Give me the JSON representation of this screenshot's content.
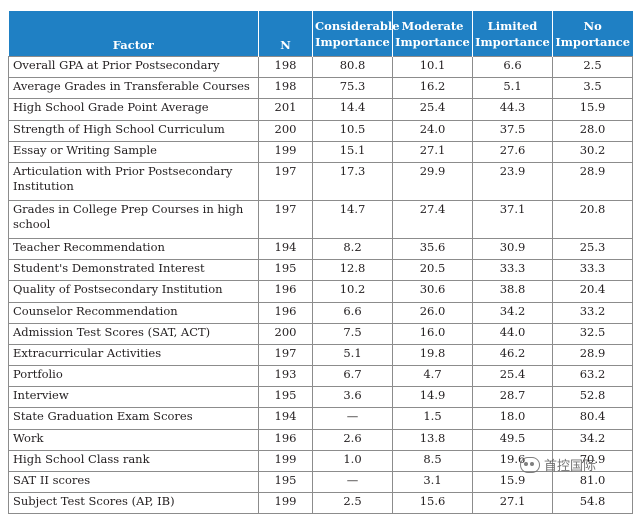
{
  "headers": {
    "factor": "Factor",
    "n": "N",
    "considerable": "Considerable Importance",
    "moderate": "Moderate Importance",
    "limited": "Limited Importance",
    "no": "No Importance"
  },
  "rows": [
    {
      "factor": "Overall GPA at Prior Postsecondary",
      "n": "198",
      "considerable": "80.8",
      "moderate": "10.1",
      "limited": "6.6",
      "no": "2.5"
    },
    {
      "factor": "Average Grades in Transferable Courses",
      "n": "198",
      "considerable": "75.3",
      "moderate": "16.2",
      "limited": "5.1",
      "no": "3.5"
    },
    {
      "factor": "High School Grade Point Average",
      "n": "201",
      "considerable": "14.4",
      "moderate": "25.4",
      "limited": "44.3",
      "no": "15.9"
    },
    {
      "factor": "Strength of High School Curriculum",
      "n": "200",
      "considerable": "10.5",
      "moderate": "24.0",
      "limited": "37.5",
      "no": "28.0"
    },
    {
      "factor": "Essay or Writing Sample",
      "n": "199",
      "considerable": "15.1",
      "moderate": "27.1",
      "limited": "27.6",
      "no": "30.2"
    },
    {
      "factor": "Articulation with Prior Postsecondary Institution",
      "n": "197",
      "considerable": "17.3",
      "moderate": "29.9",
      "limited": "23.9",
      "no": "28.9"
    },
    {
      "factor": "Grades in College Prep Courses in high school",
      "n": "197",
      "considerable": "14.7",
      "moderate": "27.4",
      "limited": "37.1",
      "no": "20.8"
    },
    {
      "factor": "Teacher Recommendation",
      "n": "194",
      "considerable": "8.2",
      "moderate": "35.6",
      "limited": "30.9",
      "no": "25.3"
    },
    {
      "factor": "Student's Demonstrated Interest",
      "n": "195",
      "considerable": "12.8",
      "moderate": "20.5",
      "limited": "33.3",
      "no": "33.3"
    },
    {
      "factor": "Quality of Postsecondary Institution",
      "n": "196",
      "considerable": "10.2",
      "moderate": "30.6",
      "limited": "38.8",
      "no": "20.4"
    },
    {
      "factor": "Counselor Recommendation",
      "n": "196",
      "considerable": "6.6",
      "moderate": "26.0",
      "limited": "34.2",
      "no": "33.2"
    },
    {
      "factor": "Admission Test Scores (SAT, ACT)",
      "n": "200",
      "considerable": "7.5",
      "moderate": "16.0",
      "limited": "44.0",
      "no": "32.5"
    },
    {
      "factor": "Extracurricular Activities",
      "n": "197",
      "considerable": "5.1",
      "moderate": "19.8",
      "limited": "46.2",
      "no": "28.9"
    },
    {
      "factor": "Portfolio",
      "n": "193",
      "considerable": "6.7",
      "moderate": "4.7",
      "limited": "25.4",
      "no": "63.2"
    },
    {
      "factor": "Interview",
      "n": "195",
      "considerable": "3.6",
      "moderate": "14.9",
      "limited": "28.7",
      "no": "52.8"
    },
    {
      "factor": "State Graduation Exam Scores",
      "n": "194",
      "considerable": "—",
      "moderate": "1.5",
      "limited": "18.0",
      "no": "80.4"
    },
    {
      "factor": "Work",
      "n": "196",
      "considerable": "2.6",
      "moderate": "13.8",
      "limited": "49.5",
      "no": "34.2"
    },
    {
      "factor": "High School Class rank",
      "n": "199",
      "considerable": "1.0",
      "moderate": "8.5",
      "limited": "19.6",
      "no": "70.9"
    },
    {
      "factor": "SAT II scores",
      "n": "195",
      "considerable": "—",
      "moderate": "3.1",
      "limited": "15.9",
      "no": "81.0"
    },
    {
      "factor": "Subject Test Scores (AP, IB)",
      "n": "199",
      "considerable": "2.5",
      "moderate": "15.6",
      "limited": "27.1",
      "no": "54.8"
    }
  ],
  "watermark": {
    "text": "首控国际",
    "icon": "wechat-icon"
  }
}
